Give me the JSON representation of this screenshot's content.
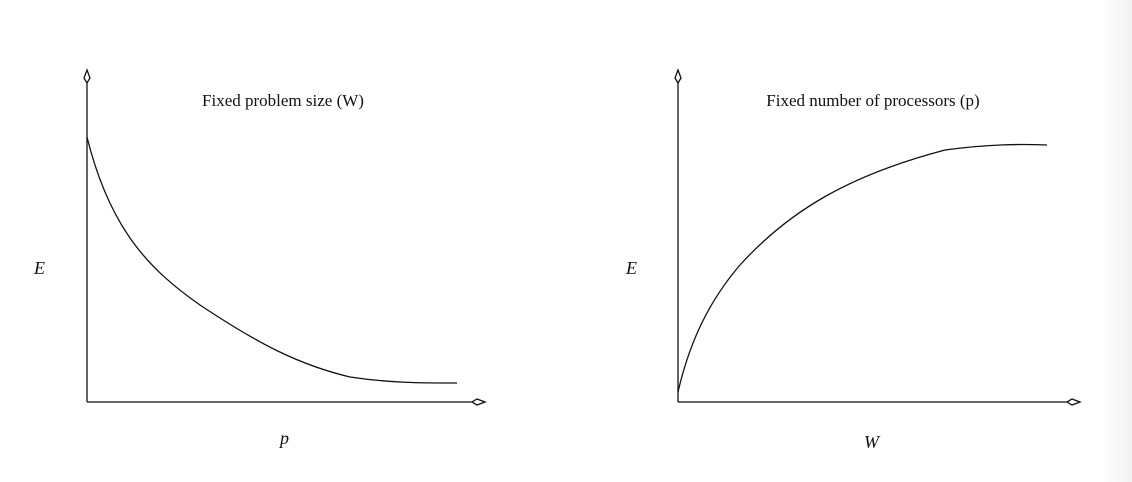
{
  "panels": [
    {
      "title": "Fixed problem size (W)",
      "ylabel": "E",
      "xlabel": "p",
      "trend": "decreasing"
    },
    {
      "title": "Fixed number of processors (p)",
      "ylabel": "E",
      "xlabel": "W",
      "trend": "increasing"
    }
  ],
  "colors": {
    "line": "#111111",
    "background": "#ffffff"
  }
}
